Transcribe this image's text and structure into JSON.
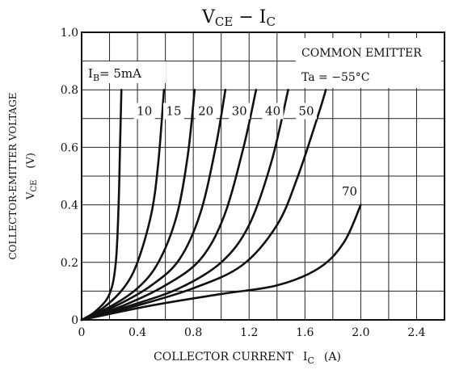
{
  "chart_data": {
    "type": "line",
    "title": {
      "main": "V",
      "main_sub": "CE",
      "dash": " − ",
      "second": "I",
      "second_sub": "C"
    },
    "ylabel": {
      "line1": "COLLECTOR-EMITTER VOLTAGE",
      "line2_main": "V",
      "line2_sub": "CE",
      "line2_unit": "(V)"
    },
    "xlabel": {
      "main": "COLLECTOR CURRENT",
      "sym": "I",
      "sym_sub": "C",
      "unit": "(A)"
    },
    "xlim": [
      0,
      2.6
    ],
    "ylim": [
      0,
      1.0
    ],
    "x_ticks": [
      "0",
      "0.4",
      "0.8",
      "1.2",
      "1.6",
      "2.0",
      "2.4"
    ],
    "y_ticks": [
      "0",
      "0.2",
      "0.4",
      "0.6",
      "0.8",
      "1.0"
    ],
    "grid": true,
    "annotations": {
      "condition1": "COMMON EMITTER",
      "condition2": "Ta = −55°C",
      "ib_prefix": "I",
      "ib_sub": "B",
      "ib_value": "= 5mA"
    },
    "series": [
      {
        "label": "5mA",
        "points": [
          [
            0,
            0
          ],
          [
            0.1,
            0.03
          ],
          [
            0.2,
            0.09
          ],
          [
            0.245,
            0.2
          ],
          [
            0.265,
            0.4
          ],
          [
            0.275,
            0.6
          ],
          [
            0.285,
            0.8
          ]
        ]
      },
      {
        "label": "10",
        "points": [
          [
            0,
            0
          ],
          [
            0.15,
            0.04
          ],
          [
            0.3,
            0.11
          ],
          [
            0.4,
            0.2
          ],
          [
            0.5,
            0.37
          ],
          [
            0.55,
            0.55
          ],
          [
            0.59,
            0.8
          ]
        ]
      },
      {
        "label": "15",
        "points": [
          [
            0,
            0
          ],
          [
            0.2,
            0.045
          ],
          [
            0.4,
            0.11
          ],
          [
            0.55,
            0.2
          ],
          [
            0.68,
            0.36
          ],
          [
            0.76,
            0.57
          ],
          [
            0.81,
            0.8
          ]
        ]
      },
      {
        "label": "20",
        "points": [
          [
            0,
            0
          ],
          [
            0.25,
            0.05
          ],
          [
            0.5,
            0.12
          ],
          [
            0.7,
            0.21
          ],
          [
            0.85,
            0.37
          ],
          [
            0.96,
            0.6
          ],
          [
            1.03,
            0.8
          ]
        ]
      },
      {
        "label": "30",
        "points": [
          [
            0,
            0
          ],
          [
            0.3,
            0.05
          ],
          [
            0.6,
            0.12
          ],
          [
            0.85,
            0.21
          ],
          [
            1.02,
            0.36
          ],
          [
            1.16,
            0.6
          ],
          [
            1.25,
            0.8
          ]
        ]
      },
      {
        "label": "40",
        "points": [
          [
            0,
            0
          ],
          [
            0.35,
            0.05
          ],
          [
            0.7,
            0.11
          ],
          [
            1.0,
            0.2
          ],
          [
            1.2,
            0.33
          ],
          [
            1.36,
            0.55
          ],
          [
            1.48,
            0.8
          ]
        ]
      },
      {
        "label": "50",
        "points": [
          [
            0,
            0
          ],
          [
            0.4,
            0.05
          ],
          [
            0.8,
            0.11
          ],
          [
            1.15,
            0.19
          ],
          [
            1.4,
            0.33
          ],
          [
            1.55,
            0.5
          ],
          [
            1.7,
            0.72
          ],
          [
            1.75,
            0.8
          ]
        ]
      },
      {
        "label": "70",
        "points": [
          [
            0,
            0
          ],
          [
            0.5,
            0.05
          ],
          [
            1.0,
            0.09
          ],
          [
            1.4,
            0.12
          ],
          [
            1.7,
            0.18
          ],
          [
            1.88,
            0.27
          ],
          [
            2.0,
            0.4
          ]
        ]
      }
    ],
    "curve_labels": [
      "10",
      "15",
      "20",
      "30",
      "40",
      "50",
      "70"
    ]
  }
}
